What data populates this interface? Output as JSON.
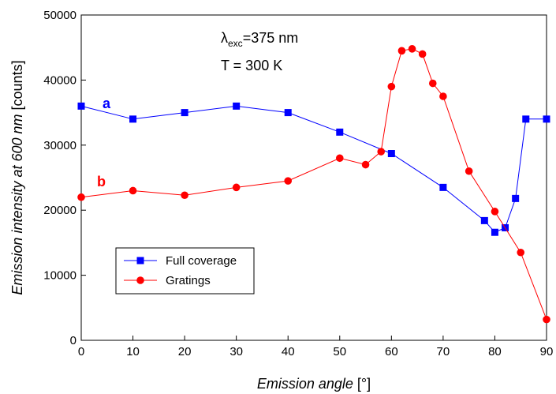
{
  "chart_data": {
    "type": "line",
    "xlabel_main": "Emission angle",
    "xlabel_unit": "[°]",
    "ylabel_main": "Emission intensity at 600 nm",
    "ylabel_unit": "[counts]",
    "xlim": [
      0,
      90
    ],
    "ylim": [
      0,
      50000
    ],
    "x_ticks": [
      0,
      10,
      20,
      30,
      40,
      50,
      60,
      70,
      80,
      90
    ],
    "y_ticks": [
      0,
      10000,
      20000,
      30000,
      40000,
      50000
    ],
    "grid": false,
    "legend_position": "bottom-left",
    "annotations": {
      "lambda_symbol": "λ",
      "lambda_sub": "exc",
      "lambda_value": "=375 nm",
      "temperature": "T = 300 K"
    },
    "series": [
      {
        "name": "Full coverage",
        "letter": "a",
        "color": "#0000ff",
        "marker": "square",
        "x": [
          0,
          10,
          20,
          30,
          40,
          50,
          60,
          70,
          78,
          80,
          82,
          84,
          86,
          90
        ],
        "y": [
          36000,
          34000,
          35000,
          36000,
          35000,
          32000,
          28700,
          23500,
          18400,
          16600,
          17300,
          21800,
          34000,
          34000
        ]
      },
      {
        "name": "Gratings",
        "letter": "b",
        "color": "#ff0000",
        "marker": "circle",
        "x": [
          0,
          10,
          20,
          30,
          40,
          50,
          55,
          58,
          60,
          62,
          64,
          66,
          68,
          70,
          75,
          80,
          85,
          90
        ],
        "y": [
          22000,
          23000,
          22300,
          23500,
          24500,
          28000,
          27000,
          29000,
          39000,
          44500,
          44800,
          44000,
          39500,
          37500,
          26000,
          19800,
          13500,
          3200
        ]
      }
    ]
  }
}
